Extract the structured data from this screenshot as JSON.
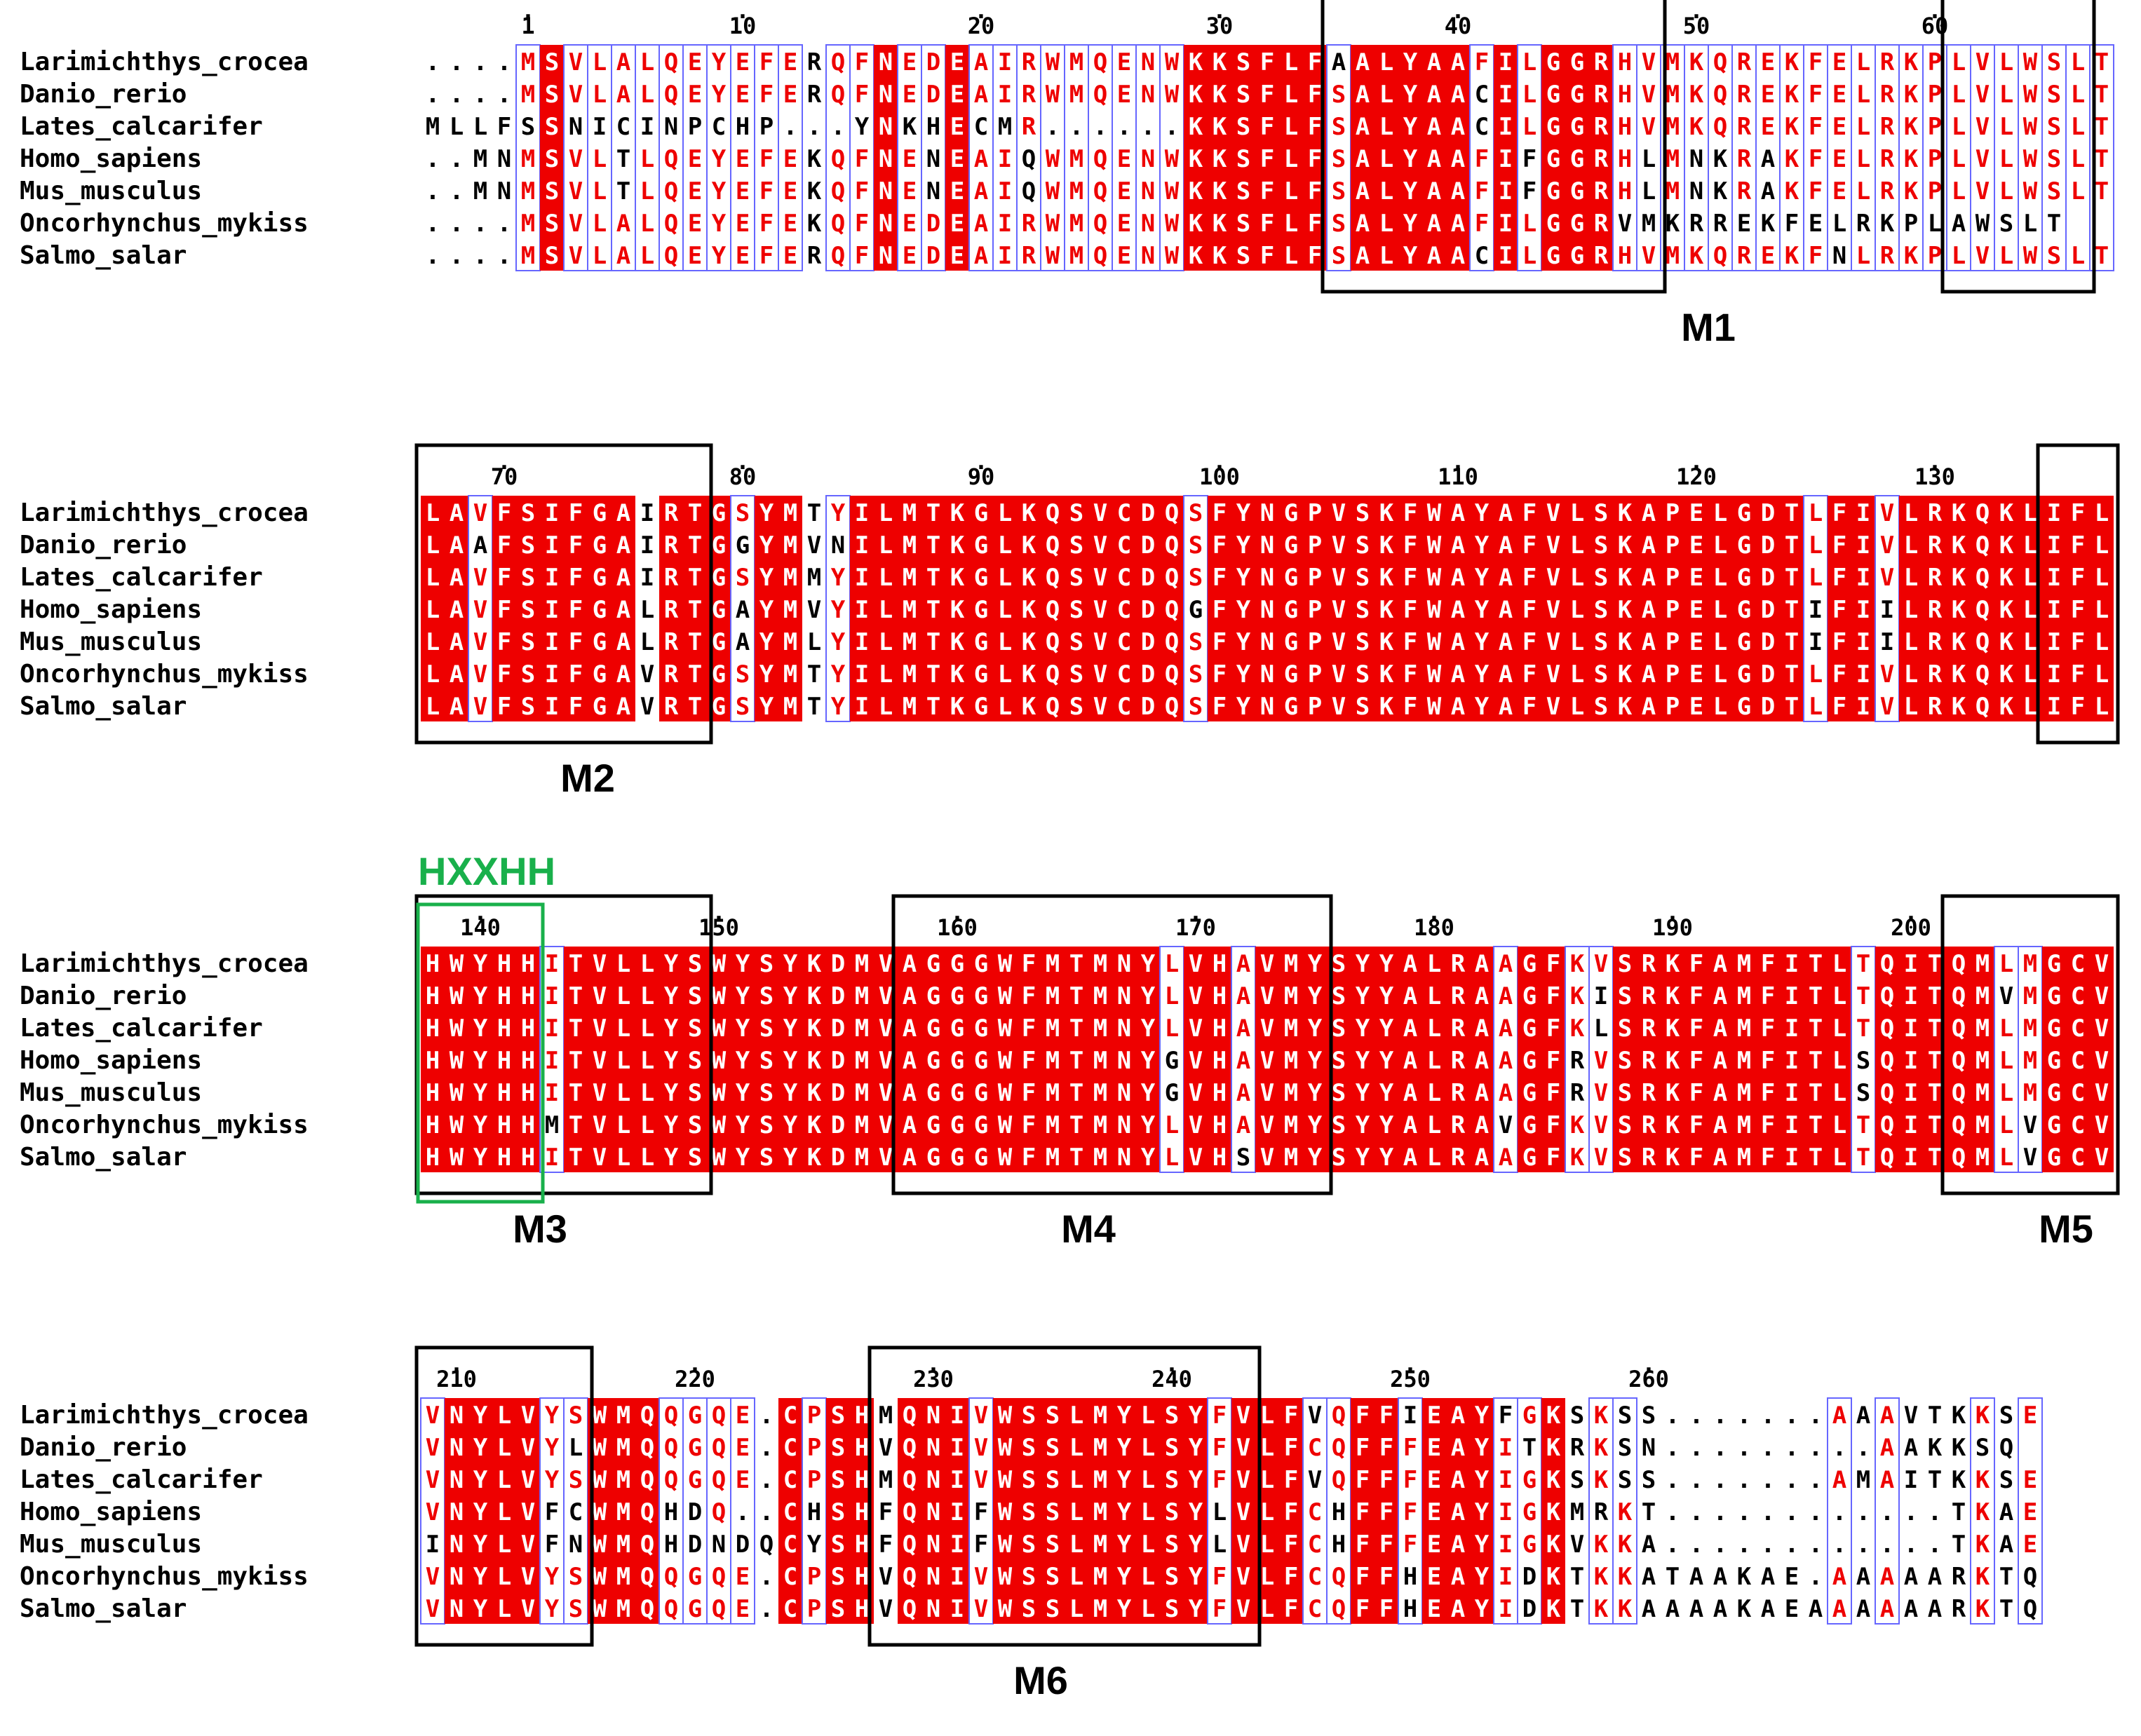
{
  "species": [
    "Larimichthys_crocea",
    "Danio_rerio",
    "Lates_calcarifer",
    "Homo_sapiens",
    "Mus_musculus",
    "Oncorhynchus_mykiss",
    "Salmo_salar"
  ],
  "blocks": [
    {
      "start": -3,
      "ticks": [
        "1",
        "10",
        "20",
        "30",
        "40",
        "50",
        "60"
      ],
      "sequences": [
        "....MSVLALQEYEFERQFNEDEAIRWMQENWKKSFLFAALYAAFILGGRHVMKQREKFELRKPLVLWSLT",
        "....MSVLALQEYEFERQFNEDEAIRWMQENWKKSFLFSALYAACILGGRHVMKQREKFELRKPLVLWSLT",
        "MLLFSSNICINPCHP...YNKHECMR......KKSFLFSALYAACILGGRHVMKQREKFELRKPLVLWSLT",
        "..MNMSVLTLQEYEFEKQFNENEAIQWMQENWKKSFLFSALYAAFIFGGRHLMNKRAKFELRKPLVLWSLT",
        "..MNMSVLTLQEYEFEKQFNENEAIQWMQENWKKSFLFSALYAAFIFGGRHLMNKRAKFELRKPLVLWSLT",
        "....MSVLALQEYEFEKQFNEDEAIRWMQENWKKSFLFSALYAAFILGGRVMKRREKFELRKPLAWSLT",
        "....MSVLALQEYEFERQFNEDEAIRWMQENWKKSFLFSALYAACILGGRHVMKQREKFNLRKPLVLWSLT"
      ]
    },
    {
      "start": 67,
      "ticks": [
        "70",
        "80",
        "90",
        "100",
        "110",
        "120",
        "130"
      ],
      "sequences": [
        "LAVFSIFGAIRTGSYMTYILMTKGLKQSVCDQSFYNGPVSKFWAYAFVLSKAPELGDTLFIVLRKQKLIFL",
        "LAAFSIFGAIRTGGYMVNILMTKGLKQSVCDQSFYNGPVSKFWAYAFVLSKAPELGDTLFIVLRKQKLIFL",
        "LAVFSIFGAIRTGSYMMYILMTKGLKQSVCDQSFYNGPVSKFWAYAFVLSKAPELGDTLFIVLRKQKLIFL",
        "LAVFSIFGALRTGAYMVYILMTKGLKQSVCDQGFYNGPVSKFWAYAFVLSKAPELGDTIFIILRKQKLIFL",
        "LAVFSIFGALRTGAYMLYILMTKGLKQSVCDQSFYNGPVSKFWAYAFVLSKAPELGDTIFIILRKQKLIFL",
        "LAVFSIFGAVRTGSYMTYILMTKGLKQSVCDQSFYNGPVSKFWAYAFVLSKAPELGDTLFIVLRKQKLIFL",
        "LAVFSIFGAVRTGSYMTYILMTKGLKQSVCDQSFYNGPVSKFWAYAFVLSKAPELGDTLFIVLRKQKLIFL"
      ]
    },
    {
      "start": 138,
      "ticks": [
        "140",
        "150",
        "160",
        "170",
        "180",
        "190",
        "200"
      ],
      "sequences": [
        "HWYHHITVLLYSWYSYKDMVAGGGWFMTMNYLVHAVMYSYYALRAAGFKVSRKFAMFITLTQITQMLMGCV",
        "HWYHHITVLLYSWYSYKDMVAGGGWFMTMNYLVHAVMYSYYALRAAGFKISRKFAMFITLTQITQMVMGCV",
        "HWYHHITVLLYSWYSYKDMVAGGGWFMTMNYLVHAVMYSYYALRAAGFKLSRKFAMFITLTQITQMLMGCV",
        "HWYHHITVLLYSWYSYKDMVAGGGWFMTMNYGVHAVMYSYYALRAAGFRVSRKFAMFITLSQITQMLMGCV",
        "HWYHHITVLLYSWYSYKDMVAGGGWFMTMNYGVHAVMYSYYALRAAGFRVSRKFAMFITLSQITQMLMGCV",
        "HWYHHMTVLLYSWYSYKDMVAGGGWFMTMNYLVHAVMYSYYALRAVGFKVSRKFAMFITLTQITQMLVGCV",
        "HWYHHITVLLYSWYSYKDMVAGGGWFMTMNYLVHSVMYSYYALRAAGFKVSRKFAMFITLTQITQMLVGCV"
      ]
    },
    {
      "start": 209,
      "ticks": [
        "210",
        "220",
        "230",
        "240",
        "250",
        "260"
      ],
      "sequences": [
        "VNYLVYSWMQQGQE.CPSHMQNIVWSSLMYLSYFVLFVQFFIEAYFGKSKSS.......AAAVTKKSE",
        "VNYLVYLWMQQGQE.CPSHVQNIVWSSLMYLSYFVLFCQFFFEAYITKRKSN.........AAKKSQ",
        "VNYLVYSWMQQGQE.CPSHMQNIVWSSLMYLSYFVLFVQFFFEAYIGKSKSS.......AMAITKKSE",
        "VNYLVFCWMQHDQ..CHSHFQNIFWSSLMYLSYLVLFCHFFFEAYIGKMRKT............TKAE",
        "INYLVFNWMQHDNDQCYSHFQNIFWSSLMYLSYLVLFCHFFFEAYIGKVKKA............TKAE",
        "VNYLVYSWMQQGQE.CPSHVQNIVWSSLMYLSYFVLFCQFFHEAYIDKTKKATAAKAE.AAAAARKTQ",
        "VNYLVYSWMQQGQE.CPSHVQNIVWSSLMYLSYFVLFCQFFHEAYIDKTKKAAAAKAEAAAAAARKTQ"
      ]
    }
  ],
  "motifs": [
    {
      "label": "M1",
      "block": 0,
      "from": 35,
      "to": 49
    },
    {
      "label": "M1",
      "block": 0,
      "from": 61,
      "to": 67
    },
    {
      "label": "M2",
      "block": 1,
      "from": 67,
      "to": 79
    },
    {
      "label": "M2",
      "block": 1,
      "from": 135,
      "to": 138
    },
    {
      "label": "M3",
      "block": 2,
      "from": 138,
      "to": 150
    },
    {
      "label": "M4",
      "block": 2,
      "from": 158,
      "to": 176
    },
    {
      "label": "M5",
      "block": 2,
      "from": 202,
      "to": 213
    },
    {
      "label": "M3",
      "block": 3,
      "from": 209,
      "to": 216
    },
    {
      "label": "M6",
      "block": 3,
      "from": 228,
      "to": 244
    }
  ],
  "motif_labels": [
    {
      "text": "M1",
      "block": 0,
      "center": 51
    },
    {
      "text": "M2",
      "block": 1,
      "center": 74
    },
    {
      "text": "M3",
      "block": 2,
      "center": 143
    },
    {
      "text": "M4",
      "block": 2,
      "center": 166
    },
    {
      "text": "M5",
      "block": 2,
      "center": 207
    },
    {
      "text": "M6",
      "block": 3,
      "center": 235
    }
  ],
  "hxxhh": {
    "text": "HXXHH",
    "block": 2,
    "from": 138,
    "to": 142
  },
  "colors": {
    "conserved_bg": "#ee0000",
    "conserved_text": "#ffffff",
    "similar_text": "#ee0000",
    "frame": "#6666ff",
    "motif_box": "#000000",
    "hxxhh_box": "#19b04b"
  }
}
